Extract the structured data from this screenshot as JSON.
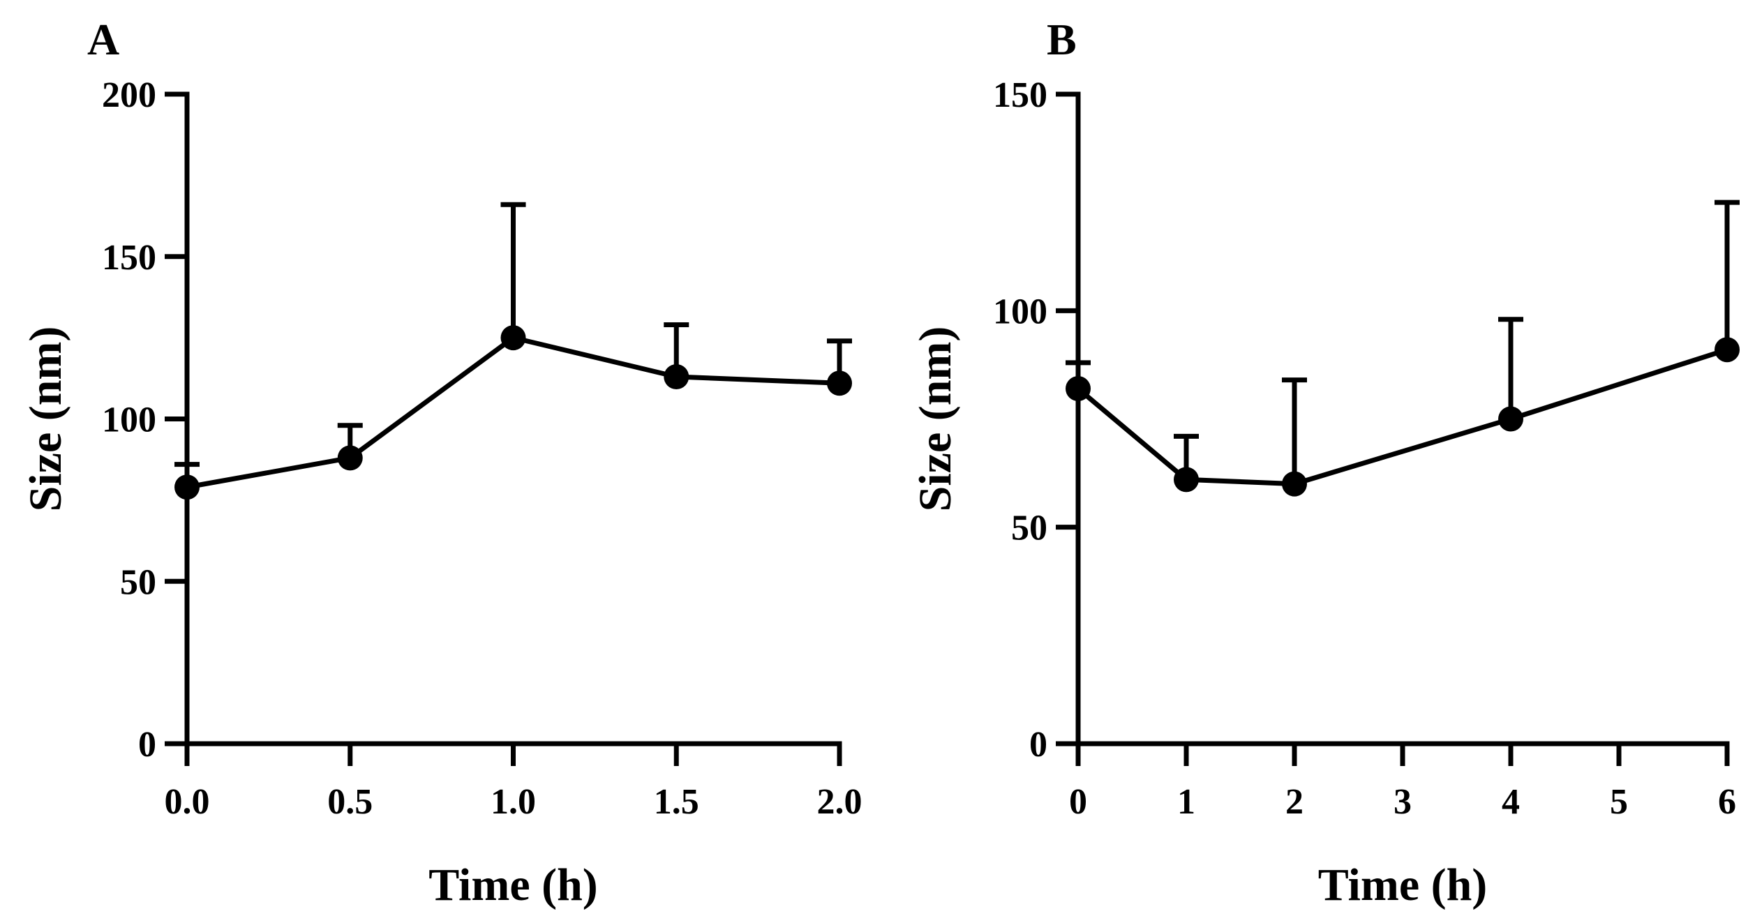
{
  "chart_data": [
    {
      "type": "line",
      "panel_label": "A",
      "xlabel": "Time (h)",
      "ylabel": "Size (nm)",
      "xlim": [
        0,
        2.0
      ],
      "ylim": [
        0,
        200
      ],
      "xticks": [
        "0.0",
        "0.5",
        "1.0",
        "1.5",
        "2.0"
      ],
      "yticks": [
        "0",
        "50",
        "100",
        "150",
        "200"
      ],
      "series": [
        {
          "name": "Size",
          "x": [
            0.0,
            0.5,
            1.0,
            1.5,
            2.0
          ],
          "y": [
            79,
            88,
            125,
            113,
            111
          ],
          "error_upper": [
            7,
            10,
            41,
            16,
            13
          ]
        }
      ]
    },
    {
      "type": "line",
      "panel_label": "B",
      "xlabel": "Time (h)",
      "ylabel": "Size (nm)",
      "xlim": [
        0,
        6
      ],
      "ylim": [
        0,
        150
      ],
      "xticks": [
        "0",
        "1",
        "2",
        "3",
        "4",
        "5",
        "6"
      ],
      "yticks": [
        "0",
        "50",
        "100",
        "150"
      ],
      "series": [
        {
          "name": "Size",
          "x": [
            0,
            1,
            2,
            4,
            6
          ],
          "y": [
            82,
            61,
            60,
            75,
            91
          ],
          "error_upper": [
            6,
            10,
            24,
            23,
            34
          ]
        }
      ]
    }
  ]
}
